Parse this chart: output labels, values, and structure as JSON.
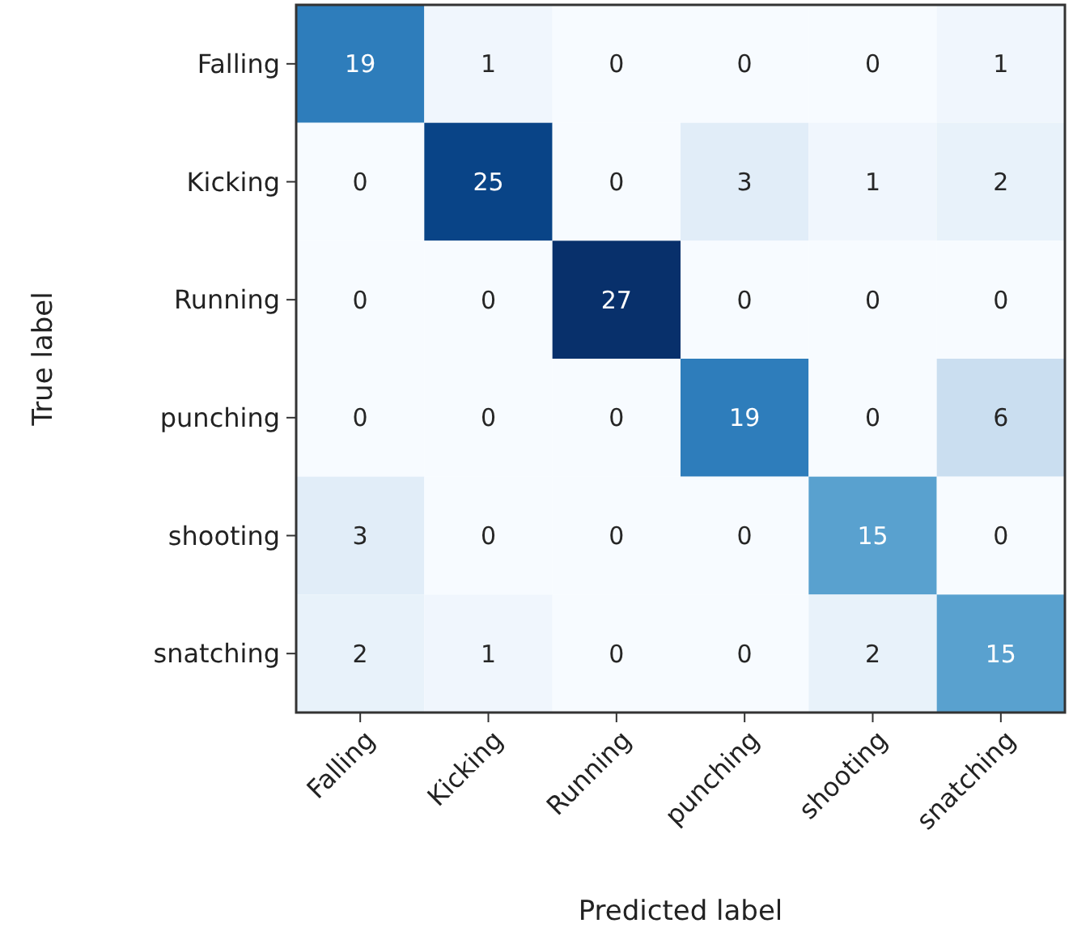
{
  "chart_data": {
    "type": "heatmap",
    "data_labels": true,
    "xlabel": "Predicted label",
    "ylabel": "True label",
    "categories": [
      "Falling",
      "Kicking",
      "Running",
      "punching",
      "shooting",
      "snatching"
    ],
    "y_categories": [
      "Falling",
      "Kicking",
      "Running",
      "punching",
      "shooting",
      "snatching"
    ],
    "cells": [
      [
        19,
        1,
        0,
        0,
        0,
        1
      ],
      [
        0,
        25,
        0,
        3,
        1,
        2
      ],
      [
        0,
        0,
        27,
        0,
        0,
        0
      ],
      [
        0,
        0,
        0,
        19,
        0,
        6
      ],
      [
        3,
        0,
        0,
        0,
        15,
        0
      ],
      [
        2,
        1,
        0,
        0,
        2,
        15
      ]
    ]
  }
}
